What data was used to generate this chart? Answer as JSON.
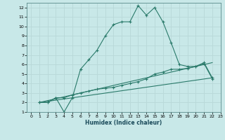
{
  "xlabel": "Humidex (Indice chaleur)",
  "ylabel": "",
  "bg_color": "#c8e8e8",
  "grid_color": "#b8d8d8",
  "line_color": "#2a7a6a",
  "xlim": [
    -0.5,
    23
  ],
  "ylim": [
    1,
    12.5
  ],
  "xticks": [
    0,
    1,
    2,
    3,
    4,
    5,
    6,
    7,
    8,
    9,
    10,
    11,
    12,
    13,
    14,
    15,
    16,
    17,
    18,
    19,
    20,
    21,
    22,
    23
  ],
  "yticks": [
    1,
    2,
    3,
    4,
    5,
    6,
    7,
    8,
    9,
    10,
    11,
    12
  ],
  "line1_x": [
    1,
    2,
    3,
    4,
    5,
    6,
    7,
    8,
    9,
    10,
    11,
    12,
    13,
    14,
    15,
    16,
    17,
    18,
    19,
    20,
    21,
    22
  ],
  "line1_y": [
    2,
    2,
    2.5,
    1,
    2.5,
    5.5,
    6.5,
    7.5,
    9,
    10.2,
    10.5,
    10.5,
    12.2,
    11.2,
    12.0,
    10.5,
    8.3,
    6.0,
    5.8,
    5.8,
    6.1,
    4.5
  ],
  "line2_x": [
    1,
    2,
    3,
    4,
    5,
    6,
    7,
    8,
    9,
    10,
    11,
    12,
    13,
    14,
    15,
    16,
    17,
    18,
    19,
    20,
    21,
    22
  ],
  "line2_y": [
    2,
    2,
    2.5,
    2.5,
    2.8,
    3.0,
    3.2,
    3.4,
    3.5,
    3.6,
    3.8,
    4.0,
    4.2,
    4.5,
    5.0,
    5.2,
    5.5,
    5.5,
    5.6,
    5.8,
    6.2,
    4.6
  ],
  "line3_x": [
    1,
    5,
    22
  ],
  "line3_y": [
    2,
    2.8,
    6.2
  ],
  "line4_x": [
    1,
    22
  ],
  "line4_y": [
    2,
    4.6
  ]
}
